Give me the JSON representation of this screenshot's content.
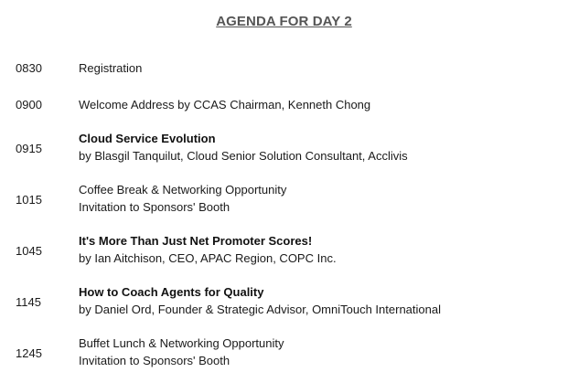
{
  "title": "AGENDA FOR DAY 2",
  "agenda": [
    {
      "time": "0830",
      "line1": "Registration",
      "line2": ""
    },
    {
      "time": "0900",
      "line1": "Welcome Address by CCAS Chairman, Kenneth Chong",
      "line2": ""
    },
    {
      "time": "0915",
      "line1": "Cloud Service Evolution",
      "line2": "by Blasgil Tanquilut, Cloud Senior Solution Consultant, Acclivis"
    },
    {
      "time": "1015",
      "line1": "Coffee Break & Networking Opportunity",
      "line2": "Invitation to Sponsors' Booth"
    },
    {
      "time": "1045",
      "line1": "It's More Than Just Net Promoter Scores!",
      "line2": "by Ian Aitchison, CEO, APAC Region, COPC Inc."
    },
    {
      "time": "1145",
      "line1": "How to Coach Agents for Quality",
      "line2": "by Daniel Ord, Founder & Strategic Advisor, OmniTouch International"
    },
    {
      "time": "1245",
      "line1": "Buffet Lunch & Networking Opportunity",
      "line2": "Invitation to Sponsors' Booth"
    }
  ]
}
